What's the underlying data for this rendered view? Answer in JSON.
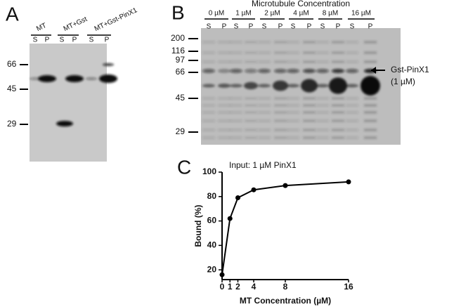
{
  "panel_a": {
    "letter": "A",
    "groups": [
      {
        "label": "MT",
        "lanes": [
          "S",
          "P"
        ]
      },
      {
        "label": "MT+Gst",
        "lanes": [
          "S",
          "P"
        ]
      },
      {
        "label": "MT+Gst-PinX1",
        "lanes": [
          "S",
          "P"
        ]
      }
    ],
    "markers": [
      "66",
      "45",
      "29"
    ]
  },
  "panel_b": {
    "letter": "B",
    "title": "Microtubule Concentration",
    "groups": [
      {
        "label": "0 µM",
        "lanes": [
          "S",
          "P"
        ]
      },
      {
        "label": "1 µM",
        "lanes": [
          "S",
          "P"
        ]
      },
      {
        "label": "2 µM",
        "lanes": [
          "S",
          "P"
        ]
      },
      {
        "label": "4 µM",
        "lanes": [
          "S",
          "P"
        ]
      },
      {
        "label": "8 µM",
        "lanes": [
          "S",
          "P"
        ]
      },
      {
        "label": "16 µM",
        "lanes": [
          "S",
          "P"
        ]
      }
    ],
    "markers": [
      "200",
      "116",
      "97",
      "66",
      "45",
      "29"
    ],
    "annotation": [
      "Gst-PinX1",
      "(1 µM)"
    ]
  },
  "panel_c": {
    "letter": "C"
  },
  "chart_data": {
    "type": "line",
    "title": "Input: 1 µM PinX1",
    "x_label": "MT Concentration (µM)",
    "y_label": "Bound (%)",
    "x": [
      0,
      1,
      2,
      4,
      8,
      16
    ],
    "values": [
      16,
      62,
      79,
      85.5,
      89,
      92
    ],
    "color": "#000000",
    "xlim": [
      0,
      16
    ],
    "xticks": [
      0,
      1,
      2,
      4,
      8,
      16
    ],
    "ylim": [
      12,
      100
    ],
    "yticks": [
      20,
      40,
      60,
      80,
      100
    ]
  }
}
